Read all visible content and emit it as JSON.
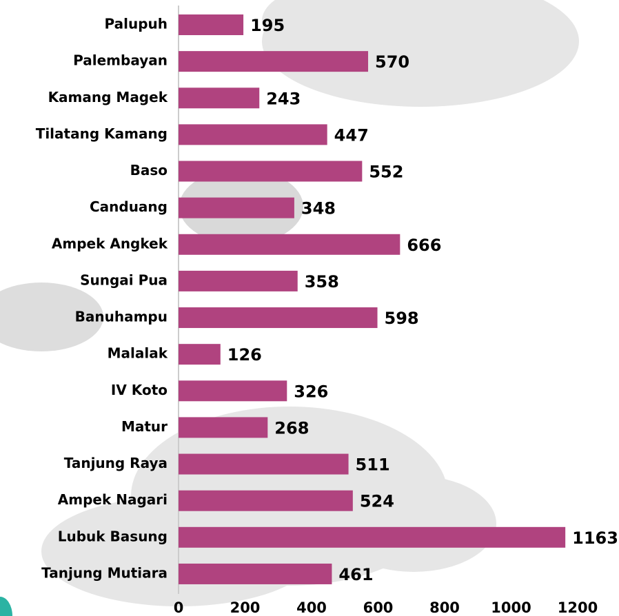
{
  "chart_data": {
    "type": "bar",
    "orientation": "horizontal",
    "categories": [
      "Palupuh",
      "Palembayan",
      "Kamang Magek",
      "Tilatang Kamang",
      "Baso",
      "Canduang",
      "Ampek Angkek",
      "Sungai Pua",
      "Banuhampu",
      "Malalak",
      "IV Koto",
      "Matur",
      "Tanjung Raya",
      "Ampek Nagari",
      "Lubuk Basung",
      "Tanjung Mutiara"
    ],
    "values": [
      195,
      570,
      243,
      447,
      552,
      348,
      666,
      358,
      598,
      126,
      326,
      268,
      511,
      524,
      1163,
      461
    ],
    "color": "#b0437f",
    "xlim": [
      0,
      1200
    ],
    "xticks": [
      0,
      200,
      400,
      600,
      800,
      1000,
      1200
    ],
    "grid": false
  }
}
